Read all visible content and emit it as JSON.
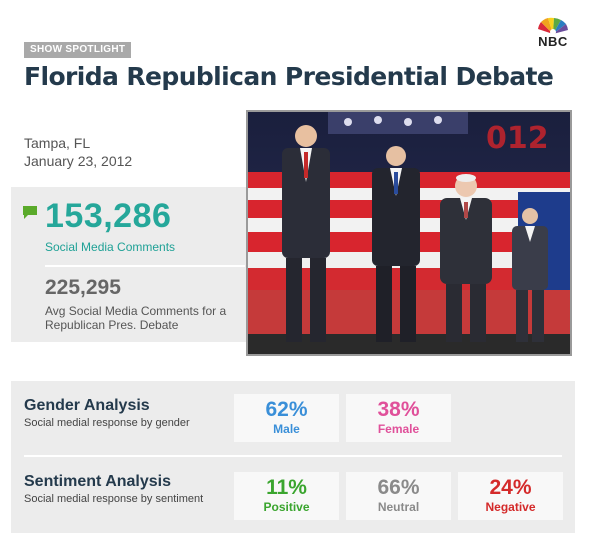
{
  "header": {
    "badge": "SHOW SPOTLIGHT",
    "title": "Florida Republican Presidential Debate",
    "logo_text": "NBC"
  },
  "event": {
    "location": "Tampa, FL",
    "date": "January 23, 2012"
  },
  "stats": {
    "comments_value": "153,286",
    "comments_label": "Social Media Comments",
    "avg_value": "225,295",
    "avg_label": "Avg Social Media Comments for a Republican Pres. Debate"
  },
  "gender": {
    "title": "Gender Analysis",
    "subtitle": "Social medial response by gender",
    "items": [
      {
        "pct": "62%",
        "label": "Male",
        "color": "#3a8fd8"
      },
      {
        "pct": "38%",
        "label": "Female",
        "color": "#e0509a"
      }
    ]
  },
  "sentiment": {
    "title": "Sentiment Analysis",
    "subtitle": "Social medial response by sentiment",
    "items": [
      {
        "pct": "11%",
        "label": "Positive",
        "color": "#3aa52e"
      },
      {
        "pct": "66%",
        "label": "Neutral",
        "color": "#8a8a8a"
      },
      {
        "pct": "24%",
        "label": "Negative",
        "color": "#d42a2a"
      }
    ]
  },
  "colors": {
    "title": "#243a4c",
    "teal": "#25a79a",
    "comment_icon": "#5aaa2a"
  },
  "icons": {
    "comment": "comment-icon",
    "logo": "nbc-peacock-logo"
  }
}
